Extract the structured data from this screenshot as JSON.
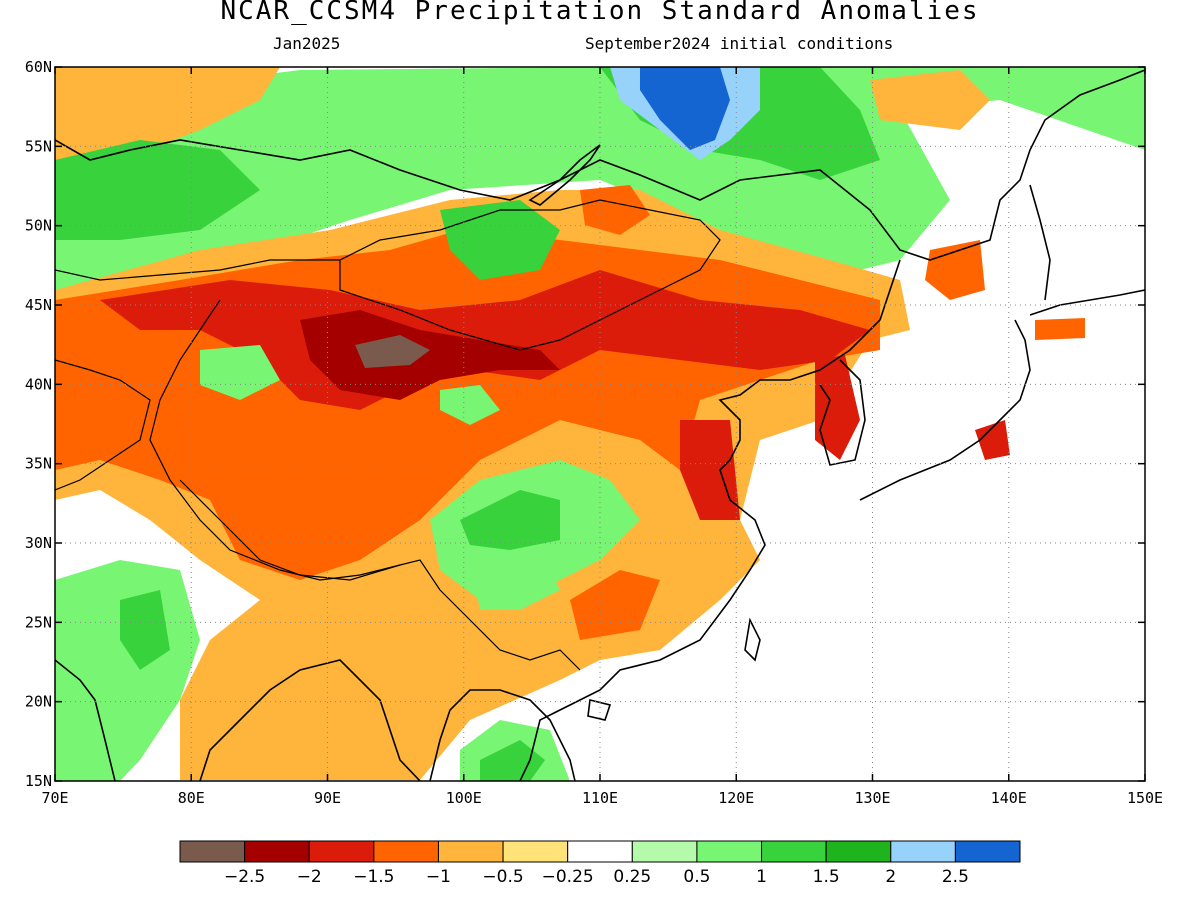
{
  "header": {
    "title": "NCAR_CCSM4 Precipitation Standard Anomalies",
    "target_month": "Jan2025",
    "init_conditions": "September2024 initial conditions"
  },
  "map": {
    "lon_range": [
      70,
      150
    ],
    "lat_range": [
      15,
      60
    ],
    "lon_ticks": [
      "70E",
      "80E",
      "90E",
      "100E",
      "110E",
      "120E",
      "130E",
      "140E",
      "150E"
    ],
    "lat_ticks": [
      "15N",
      "20N",
      "25N",
      "30N",
      "35N",
      "40N",
      "45N",
      "50N",
      "55N",
      "60N"
    ],
    "grid": "dotted",
    "ocean_color": "#ffffff",
    "coastline_color": "#000000"
  },
  "legend": {
    "colors": [
      "#7b5a4e",
      "#a50000",
      "#dc1c0a",
      "#ff6400",
      "#ffb43c",
      "#ffe278",
      "#ffffff",
      "#b4faaa",
      "#78f573",
      "#37d23c",
      "#1eb41e",
      "#96d2fa",
      "#1464d2"
    ],
    "labels": [
      "-2.5",
      "-2",
      "-1.5",
      "-1",
      "-0.5",
      "-0.25",
      "0.25",
      "0.5",
      "1",
      "1.5",
      "2",
      "2.5"
    ]
  }
}
